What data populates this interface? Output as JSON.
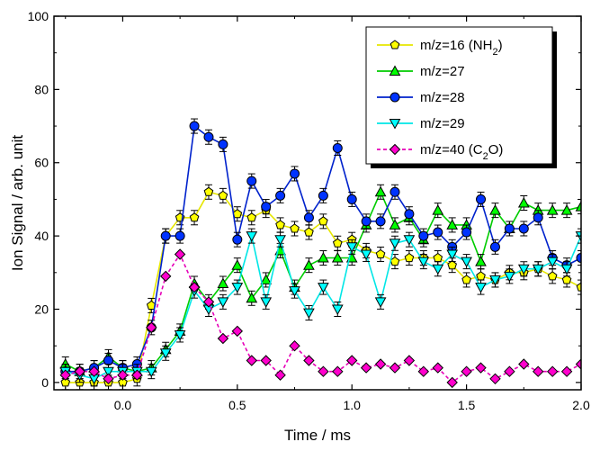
{
  "chart_data": {
    "type": "line",
    "xlabel": "Time / ms",
    "ylabel": "Ion Signal / arb. unit",
    "xlim": [
      -0.3,
      2.0
    ],
    "ylim": [
      -2,
      100
    ],
    "xticks": [
      0.0,
      0.5,
      1.0,
      1.5,
      2.0
    ],
    "xtick_labels": [
      "0.0",
      "0.5",
      "1.0",
      "1.5",
      "2.0"
    ],
    "yticks": [
      0,
      20,
      40,
      60,
      80,
      100
    ],
    "ytick_labels": [
      "0",
      "20",
      "40",
      "60",
      "80",
      "100"
    ],
    "legend_position": "top-right",
    "grid": false,
    "x": [
      -0.25,
      -0.1875,
      -0.125,
      -0.0625,
      0.0,
      0.0625,
      0.125,
      0.1875,
      0.25,
      0.3125,
      0.375,
      0.4375,
      0.5,
      0.5625,
      0.625,
      0.6875,
      0.75,
      0.8125,
      0.875,
      0.9375,
      1.0,
      1.0625,
      1.125,
      1.1875,
      1.25,
      1.3125,
      1.375,
      1.4375,
      1.5,
      1.5625,
      1.625,
      1.6875,
      1.75,
      1.8125,
      1.875,
      1.9375,
      2.0
    ],
    "series": [
      {
        "name_parts": [
          {
            "t": "m/z=16 (NH"
          },
          {
            "t": "2",
            "sub": true
          },
          {
            "t": ")"
          }
        ],
        "color": "#e6e600",
        "fill": "#ffff00",
        "marker": "pentagon",
        "dashed": false,
        "values": [
          0,
          0,
          0,
          0,
          0,
          1,
          21,
          40,
          45,
          45,
          52,
          51,
          46,
          45,
          47,
          43,
          42,
          41,
          44,
          38,
          39,
          36,
          35,
          33,
          34,
          34,
          34,
          32,
          28,
          29,
          28,
          30,
          30,
          31,
          29,
          28,
          26
        ]
      },
      {
        "name_parts": [
          {
            "t": "m/z=27"
          }
        ],
        "color": "#00cc00",
        "fill": "#00ff00",
        "marker": "triangle-up",
        "dashed": false,
        "values": [
          5,
          3,
          4,
          7,
          4,
          3,
          4,
          9,
          14,
          27,
          22,
          27,
          32,
          23,
          28,
          36,
          26,
          32,
          34,
          34,
          34,
          43,
          52,
          43,
          45,
          39,
          47,
          43,
          43,
          33,
          47,
          42,
          49,
          47,
          47,
          47,
          48
        ]
      },
      {
        "name_parts": [
          {
            "t": "m/z=28"
          }
        ],
        "color": "#0022cc",
        "fill": "#0033ff",
        "marker": "circle",
        "dashed": false,
        "values": [
          3,
          3,
          4,
          6,
          4,
          5,
          15,
          40,
          40,
          70,
          67,
          65,
          39,
          55,
          48,
          51,
          57,
          45,
          51,
          64,
          50,
          44,
          44,
          52,
          46,
          40,
          41,
          37,
          41,
          50,
          37,
          42,
          42,
          45,
          34,
          32,
          34
        ]
      },
      {
        "name_parts": [
          {
            "t": "m/z=29"
          }
        ],
        "color": "#00e6e6",
        "fill": "#00ffff",
        "marker": "triangle-down",
        "dashed": false,
        "values": [
          3,
          2,
          1,
          3,
          3,
          3,
          3,
          8,
          13,
          25,
          20,
          22,
          26,
          40,
          22,
          39,
          25,
          19,
          26,
          20,
          37,
          35,
          22,
          38,
          39,
          33,
          31,
          35,
          33,
          26,
          28,
          29,
          31,
          31,
          33,
          31,
          40
        ]
      },
      {
        "name_parts": [
          {
            "t": "m/z=40 (C"
          },
          {
            "t": "2",
            "sub": true
          },
          {
            "t": "O)"
          }
        ],
        "color": "#e600b8",
        "fill": "#ff00cc",
        "marker": "diamond",
        "dashed": true,
        "values": [
          2,
          3,
          3,
          1,
          2,
          2,
          15,
          29,
          35,
          26,
          22,
          12,
          14,
          6,
          6,
          2,
          10,
          6,
          3,
          3,
          6,
          4,
          5,
          4,
          6,
          3,
          4,
          0,
          3,
          4,
          1,
          3,
          5,
          3,
          3,
          3,
          5
        ]
      }
    ]
  }
}
